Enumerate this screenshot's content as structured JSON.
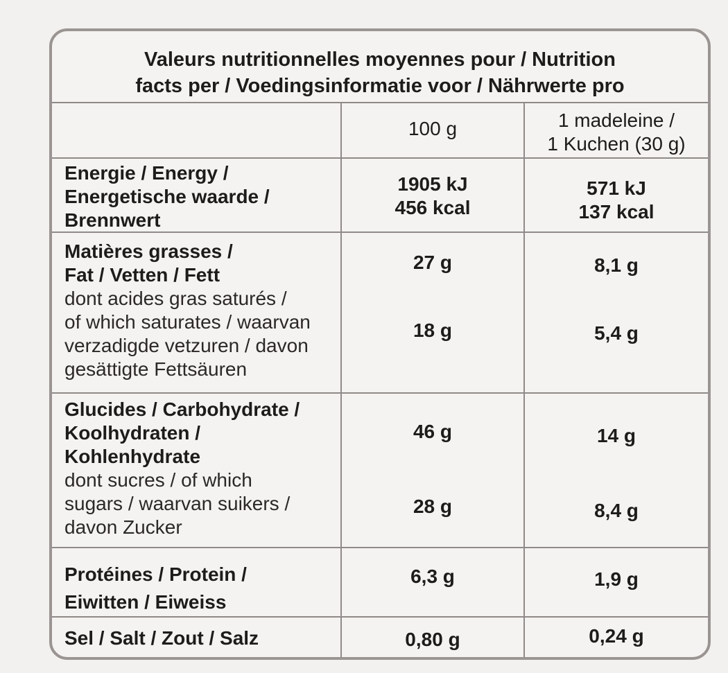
{
  "header": {
    "line1": "Valeurs nutritionnelles moyennes pour / Nutrition",
    "line2": "facts per / Voedingsinformatie voor / Nährwerte pro"
  },
  "columns": {
    "per100": "100 g",
    "perPiece_line1": "1 madeleine /",
    "perPiece_line2": "1 Kuchen (30 g)"
  },
  "rows": {
    "energy": {
      "label": [
        "Energie / Energy /",
        "Energetische waarde /",
        "Brennwert"
      ],
      "v100": [
        "1905 kJ",
        "456 kcal"
      ],
      "vPiece": [
        "571 kJ",
        "137 kcal"
      ]
    },
    "fat": {
      "label": [
        "Matières grasses /",
        "Fat / Vetten / Fett"
      ],
      "v100": "27 g",
      "vPiece": "8,1 g"
    },
    "saturates": {
      "label": [
        "dont acides gras saturés /",
        "of which saturates / waarvan",
        "verzadigde vetzuren / davon",
        "gesättigte Fettsäuren"
      ],
      "v100": "18 g",
      "vPiece": "5,4 g"
    },
    "carbs": {
      "label": [
        "Glucides / Carbohydrate /",
        "Koolhydraten /",
        "Kohlenhydrate"
      ],
      "v100": "46 g",
      "vPiece": "14 g"
    },
    "sugars": {
      "label": [
        "dont sucres / of which",
        "sugars / waarvan suikers /",
        "davon Zucker"
      ],
      "v100": "28 g",
      "vPiece": "8,4 g"
    },
    "protein": {
      "label": [
        "Protéines / Protein /",
        "Eiwitten / Eiweiss"
      ],
      "v100": "6,3 g",
      "vPiece": "1,9 g"
    },
    "salt": {
      "label": "Sel / Salt / Zout / Salz",
      "v100": "0,80 g",
      "vPiece": "0,24 g"
    }
  }
}
